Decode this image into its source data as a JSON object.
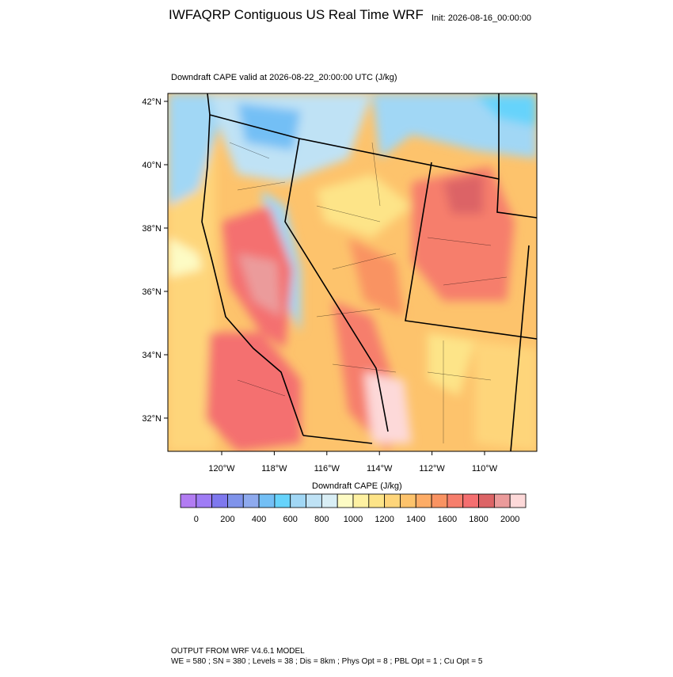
{
  "header": {
    "title": "IWFAQRP Contiguous US Real Time WRF",
    "init": "Init: 2026-08-16_00:00:00"
  },
  "map": {
    "subtitle": "Downdraft CAPE valid at 2026-08-22_20:00:00 UTC   (J/kg)",
    "lat_ticks": [
      {
        "value": 42,
        "label": "42°N"
      },
      {
        "value": 40,
        "label": "40°N"
      },
      {
        "value": 38,
        "label": "38°N"
      },
      {
        "value": 36,
        "label": "36°N"
      },
      {
        "value": 34,
        "label": "34°N"
      },
      {
        "value": 32,
        "label": "32°N"
      }
    ],
    "lon_ticks": [
      {
        "value": -120,
        "label": "120°W"
      },
      {
        "value": -118,
        "label": "118°W"
      },
      {
        "value": -116,
        "label": "116°W"
      },
      {
        "value": -114,
        "label": "114°W"
      },
      {
        "value": -112,
        "label": "112°W"
      },
      {
        "value": -110,
        "label": "110°W"
      }
    ]
  },
  "colorbar": {
    "title": "Downdraft CAPE  (J/kg)",
    "colors": [
      "#b27cf2",
      "#9f7cf5",
      "#7e78ee",
      "#7f93ea",
      "#8eaaee",
      "#73bff5",
      "#66d3fb",
      "#a1d7f5",
      "#bfe2f5",
      "#d9eef5",
      "#fdfbc4",
      "#fef1a2",
      "#fde488",
      "#fed57a",
      "#fdc36c",
      "#fdac66",
      "#f99362",
      "#f67e6c",
      "#f46f70",
      "#dc6466",
      "#eb9b9b",
      "#fdd9d9"
    ],
    "ticks": [
      0,
      200,
      400,
      600,
      800,
      1000,
      1200,
      1400,
      1600,
      1800,
      2000
    ]
  },
  "footer": {
    "line1": "OUTPUT FROM WRF V4.6.1 MODEL",
    "line2": "WE = 580 ; SN = 380 ; Levels = 38 ; Dis = 8km ; Phys Opt = 8 ; PBL Opt = 1 ; Cu Opt = 5"
  }
}
